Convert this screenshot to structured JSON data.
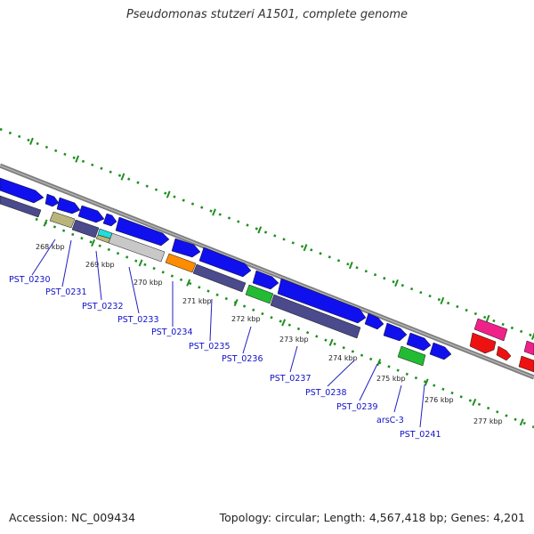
{
  "title": "Pseudomonas stutzeri A1501, complete genome",
  "footer": {
    "accession": "Accession: NC_009434",
    "summary": "Topology: circular; Length: 4,567,418 bp; Genes: 4,201"
  },
  "colors": {
    "backbone": "#7f7f7f",
    "tick": "#1f8f1f",
    "cds": "#1010ee",
    "navy": "#4a4a8c",
    "khaki": "#b9b47a",
    "cyan": "#22dddd",
    "silver": "#c8c8c8",
    "orange": "#ff8c00",
    "green": "#22bb33",
    "pink": "#ee2288",
    "red": "#ee1111",
    "label": "#1010c8"
  },
  "kbp_labels": [
    "268 kbp",
    "269 kbp",
    "270 kbp",
    "271 kbp",
    "272 kbp",
    "273 kbp",
    "274 kbp",
    "275 kbp",
    "276 kbp",
    "277 kbp"
  ],
  "gene_labels": [
    "PST_0230",
    "PST_0231",
    "PST_0232",
    "PST_0233",
    "PST_0234",
    "PST_0235",
    "PST_0236",
    "PST_0237",
    "PST_0238",
    "PST_0239",
    "arsC-3",
    "PST_0241"
  ]
}
